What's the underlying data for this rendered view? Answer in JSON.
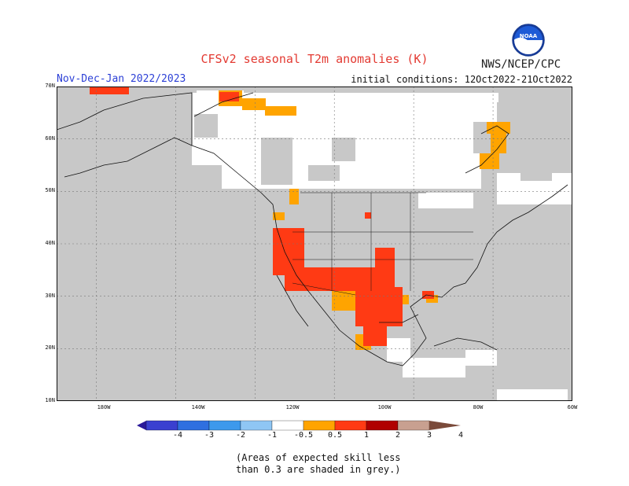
{
  "title": "CFSv2 seasonal T2m anomalies (K)",
  "agency": "NWS/NCEP/CPC",
  "logo_text": "NOAA",
  "season_label": "Nov-Dec-Jan 2022/2023",
  "initial_conditions": "initial conditions: 12Oct2022-21Oct2022",
  "map": {
    "lat_range": [
      10,
      70
    ],
    "lon_range": [
      -190,
      -60
    ],
    "lat_ticks": [
      "70N",
      "60N",
      "50N",
      "40N",
      "30N",
      "20N",
      "10N"
    ],
    "lon_ticks": [
      "180W",
      "140W",
      "120W",
      "100W",
      "80W",
      "60W"
    ],
    "colors": {
      "ocean": "#c8c8c8",
      "land_low_skill": "#c8c8c8",
      "neutral": "#ffffff",
      "warm_0_5_1": "#ffa400",
      "warm_1_2": "#ff3a14",
      "warm_2_3": "#b00000",
      "coast": "#111111",
      "grid": "#777777"
    },
    "regions": [
      {
        "name": "Canada-Alaska near-normal",
        "anomaly": "-0.5 to 0.5"
      },
      {
        "name": "US Southwest warm",
        "anomaly": "1 to 2"
      },
      {
        "name": "Texas warm",
        "anomaly": "1 to 2"
      },
      {
        "name": "Northern Mexico warm",
        "anomaly": "1 to 2"
      },
      {
        "name": "Hudson Bay east coast warm",
        "anomaly": "0.5 to 1"
      }
    ]
  },
  "colorbar": {
    "labels": [
      "-4",
      "-3",
      "-2",
      "-1",
      "-0.5",
      "0.5",
      "1",
      "2",
      "3",
      "4"
    ],
    "colors": [
      "#2a1a9a",
      "#3a40d0",
      "#2f6fe0",
      "#3d99ec",
      "#8fc6f4",
      "#ffffff",
      "#ffa400",
      "#ff3a14",
      "#b00000",
      "#c8a090",
      "#7a4a3a"
    ]
  },
  "note_line1": "(Areas of expected skill less",
  "note_line2": "than 0.3 are shaded in grey.)"
}
